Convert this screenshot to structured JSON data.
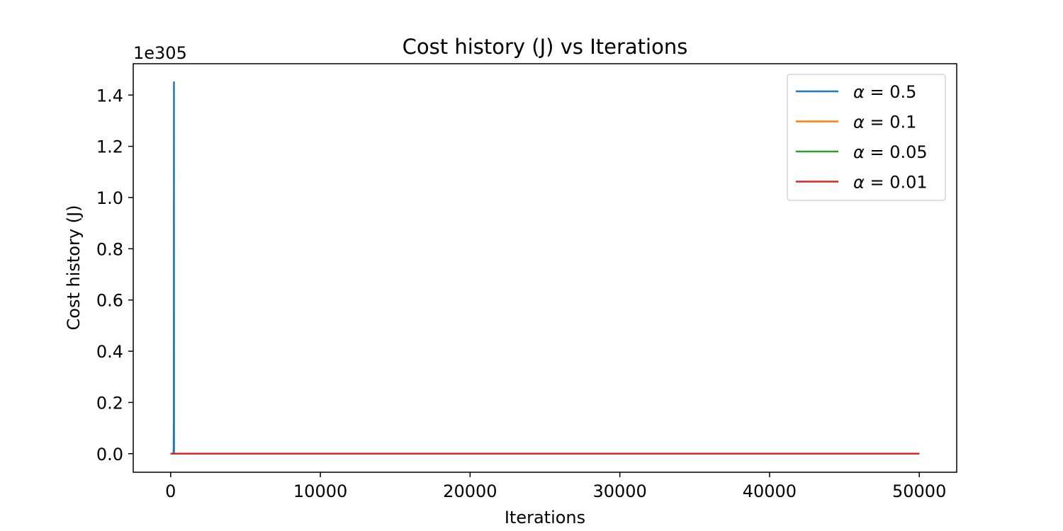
{
  "chart_data": {
    "type": "line",
    "title": "Cost history (J) vs Iterations",
    "xlabel": "Iterations",
    "ylabel": "Cost history (J)",
    "y_offset_label": "1e305",
    "xlim": [
      -2500,
      52500
    ],
    "ylim": [
      -0.0725,
      1.5225
    ],
    "xticks": [
      0,
      10000,
      20000,
      30000,
      40000,
      50000
    ],
    "xtick_labels": [
      "0",
      "10000",
      "20000",
      "30000",
      "40000",
      "50000"
    ],
    "yticks": [
      0.0,
      0.2,
      0.4,
      0.6,
      0.8,
      1.0,
      1.2,
      1.4
    ],
    "ytick_labels": [
      "0.0",
      "0.2",
      "0.4",
      "0.6",
      "0.8",
      "1.0",
      "1.2",
      "1.4"
    ],
    "grid": false,
    "legend_position": "top-right",
    "series": [
      {
        "name": "α = 0.5",
        "legend_value": "0.5",
        "color": "#1f77b4",
        "points": [
          [
            0,
            0
          ],
          [
            180,
            0
          ],
          [
            190,
            0.003
          ],
          [
            200,
            0.02
          ],
          [
            210,
            0.15
          ],
          [
            220,
            1.45
          ],
          [
            225,
            0
          ],
          [
            50000,
            0
          ]
        ]
      },
      {
        "name": "α = 0.1",
        "legend_value": "0.1",
        "color": "#ff7f0e",
        "points": [
          [
            0,
            0
          ],
          [
            50000,
            0
          ]
        ]
      },
      {
        "name": "α = 0.05",
        "legend_value": "0.05",
        "color": "#2ca02c",
        "points": [
          [
            0,
            0
          ],
          [
            50000,
            0
          ]
        ]
      },
      {
        "name": "α = 0.01",
        "legend_value": "0.01",
        "color": "#d62728",
        "points": [
          [
            0,
            0
          ],
          [
            50000,
            0
          ]
        ]
      }
    ]
  }
}
